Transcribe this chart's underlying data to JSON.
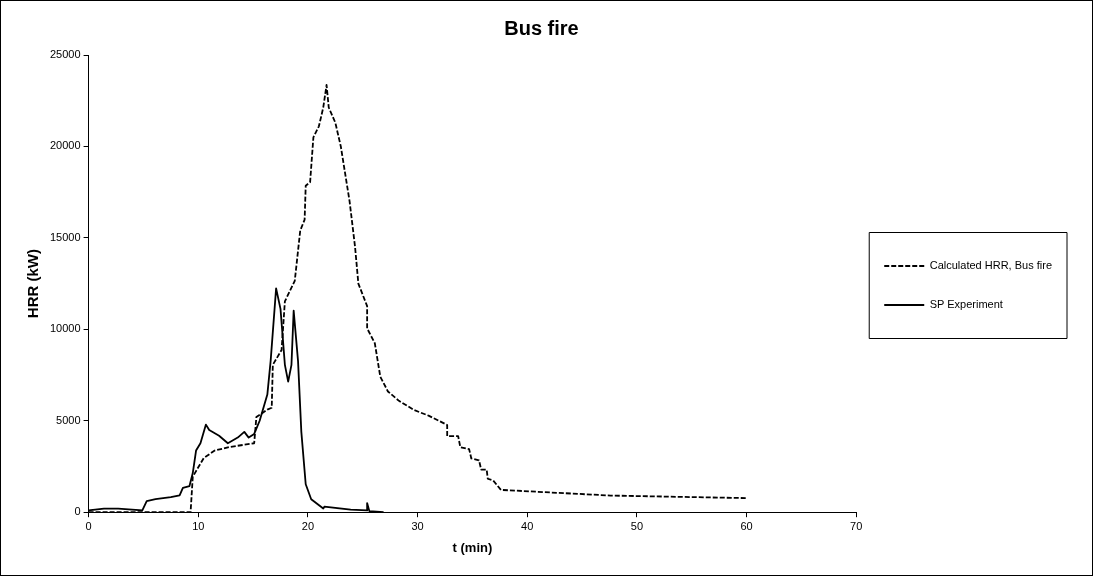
{
  "chart_data": {
    "type": "line",
    "title": "Bus fire",
    "xlabel": "t (min)",
    "ylabel": "HRR (kW)",
    "xlim": [
      0,
      70
    ],
    "xticks": [
      0,
      10,
      20,
      30,
      40,
      50,
      60,
      70
    ],
    "ylim": [
      0,
      25000
    ],
    "yticks": [
      0,
      5000,
      10000,
      15000,
      20000,
      25000
    ],
    "grid": false,
    "legend": "right",
    "marker": "none",
    "series": [
      {
        "name": "Calculated HRR, Bus fire",
        "color": "#000000",
        "line_style": "dashed",
        "x": [
          0,
          9.3,
          9.5,
          10.5,
          11.5,
          12.9,
          15.1,
          15.3,
          16.3,
          16.7,
          16.8,
          17.6,
          17.9,
          18.8,
          19.3,
          19.7,
          19.8,
          20.2,
          20.5,
          21.0,
          21.4,
          21.7,
          21.9,
          22.5,
          23.0,
          23.8,
          24.3,
          24.6,
          25.4,
          25.4,
          26.1,
          26.6,
          27.3,
          28.3,
          29.7,
          31.0,
          32.7,
          32.7,
          33.7,
          33.9,
          34.7,
          34.9,
          35.6,
          35.8,
          36.3,
          36.4,
          36.9,
          37.6,
          40.8,
          47.6,
          60
        ],
        "values": [
          0,
          0,
          1940,
          2960,
          3370,
          3570,
          3770,
          5200,
          5610,
          5710,
          8060,
          8870,
          11530,
          12650,
          15400,
          16000,
          17850,
          18050,
          20500,
          21100,
          22130,
          23360,
          22130,
          21300,
          20000,
          17000,
          14500,
          12500,
          11270,
          10050,
          9240,
          7410,
          6600,
          6090,
          5580,
          5280,
          4770,
          4160,
          4160,
          3550,
          3450,
          2940,
          2840,
          2330,
          2330,
          1830,
          1730,
          1220,
          1120,
          910,
          770
        ]
      },
      {
        "name": "SP Experiment",
        "color": "#000000",
        "line_style": "solid",
        "x": [
          0,
          1.4,
          2.7,
          4.9,
          5.3,
          6.1,
          7.5,
          8.3,
          8.6,
          9.2,
          9.5,
          9.8,
          10.2,
          10.7,
          11.0,
          11.9,
          12.7,
          13.6,
          14.2,
          14.6,
          15.1,
          15.6,
          16.3,
          16.6,
          17.1,
          17.5,
          17.9,
          18.2,
          18.5,
          18.7,
          19.1,
          19.4,
          19.8,
          20.3,
          21.4,
          21.5,
          23.9,
          25.4,
          25.4,
          25.6,
          26.9
        ],
        "values": [
          100,
          200,
          200,
          100,
          610,
          710,
          820,
          920,
          1330,
          1430,
          2140,
          3370,
          3770,
          4790,
          4490,
          4180,
          3770,
          4080,
          4390,
          4080,
          4280,
          5000,
          6430,
          8260,
          12240,
          11120,
          8060,
          7140,
          8060,
          11020,
          8260,
          4390,
          1530,
          710,
          200,
          300,
          140,
          100,
          500,
          60,
          0
        ]
      }
    ]
  }
}
